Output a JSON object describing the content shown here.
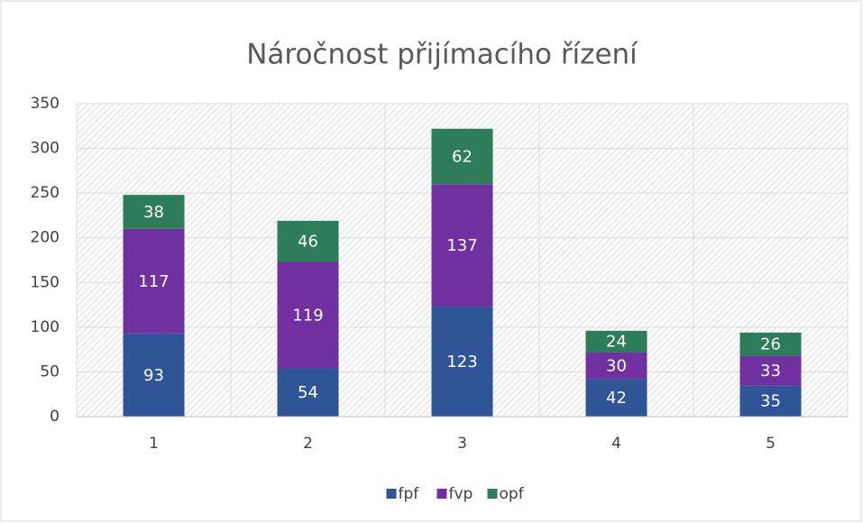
{
  "chart_data": {
    "type": "stacked_bar",
    "title": "Náročnost přijímacího řízení",
    "categories": [
      "1",
      "2",
      "3",
      "4",
      "5"
    ],
    "series": [
      {
        "name": "fpf",
        "color": "#2f5597",
        "values": [
          93,
          54,
          123,
          42,
          35
        ]
      },
      {
        "name": "fvp",
        "color": "#7030a0",
        "values": [
          117,
          119,
          137,
          30,
          33
        ]
      },
      {
        "name": "opf",
        "color": "#2e7d5a",
        "values": [
          38,
          46,
          62,
          24,
          26
        ]
      }
    ],
    "ylim": [
      0,
      350
    ],
    "yticks": [
      0,
      50,
      100,
      150,
      200,
      250,
      300,
      350
    ],
    "grid": true,
    "legend": "bottom"
  }
}
